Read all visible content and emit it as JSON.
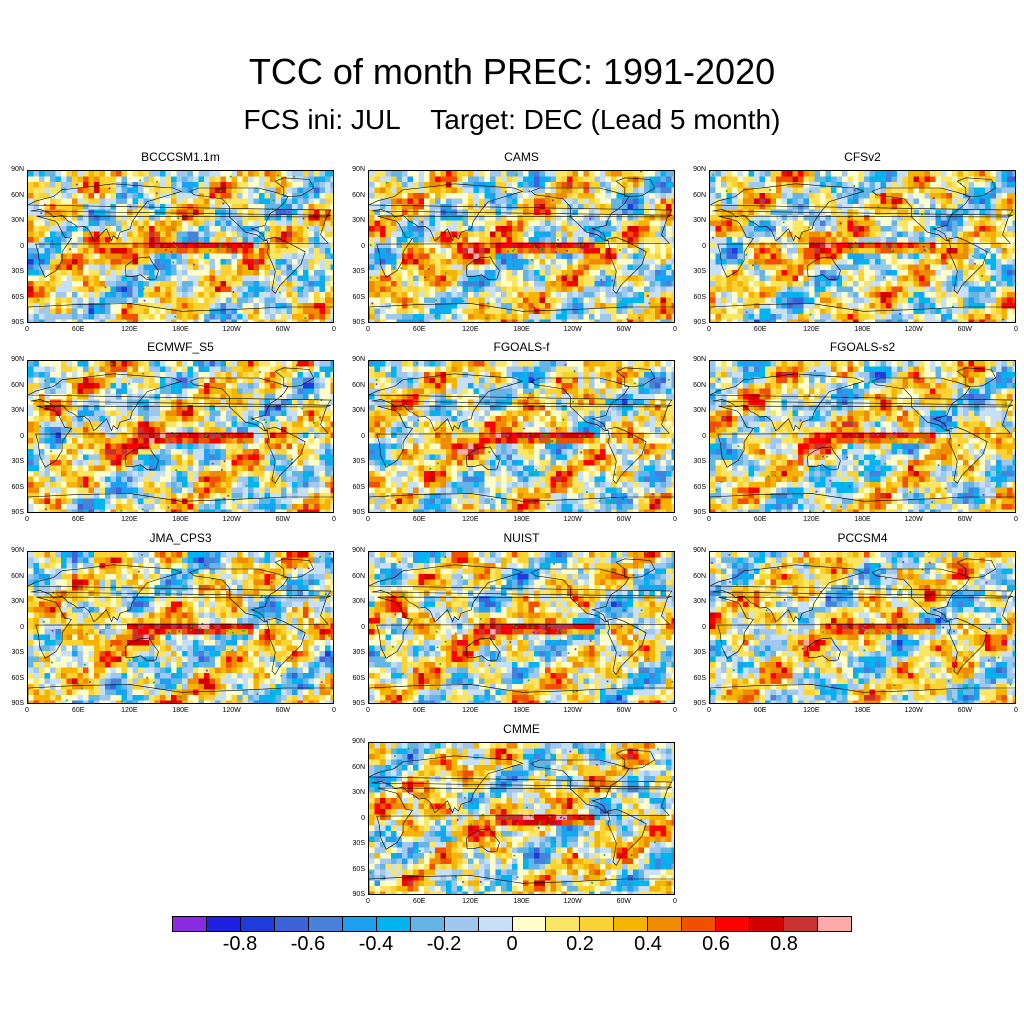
{
  "title": "TCC of month PREC: 1991-2020",
  "subtitle": "FCS ini: JUL    Target: DEC (Lead 5 month)",
  "lat_labels": [
    "90N",
    "60N",
    "30N",
    "0",
    "30S",
    "60S",
    "90S"
  ],
  "lon_labels": [
    "0",
    "60E",
    "120E",
    "180E",
    "120W",
    "60W",
    "0"
  ],
  "panels": [
    {
      "name": "BCCCSM1.1m",
      "enso_strength": 0.9
    },
    {
      "name": "CAMS",
      "enso_strength": 0.9
    },
    {
      "name": "CFSv2",
      "enso_strength": 0.75
    },
    {
      "name": "ECMWF_S5",
      "enso_strength": 1.0
    },
    {
      "name": "FGOALS-f",
      "enso_strength": 0.95
    },
    {
      "name": "FGOALS-s2",
      "enso_strength": 0.8
    },
    {
      "name": "JMA_CPS3",
      "enso_strength": 1.0
    },
    {
      "name": "NUIST",
      "enso_strength": 0.95
    },
    {
      "name": "PCCSM4",
      "enso_strength": 0.75
    },
    {
      "name": "CMME",
      "enso_strength": 1.0
    }
  ],
  "colorbar": {
    "colors": [
      "#8a2be2",
      "#2020e0",
      "#1e3cdc",
      "#3c64d8",
      "#4682dc",
      "#1ea0f0",
      "#00b4f0",
      "#64b4e6",
      "#a0c8ee",
      "#c8e0f5",
      "#ffffcc",
      "#fae664",
      "#fad232",
      "#f5b400",
      "#f08c00",
      "#f05000",
      "#ff0000",
      "#d20000",
      "#c83232",
      "#ffaaaa"
    ],
    "labels": [
      "-0.8",
      "-0.6",
      "-0.4",
      "-0.2",
      "0",
      "0.2",
      "0.4",
      "0.6",
      "0.8"
    ]
  }
}
